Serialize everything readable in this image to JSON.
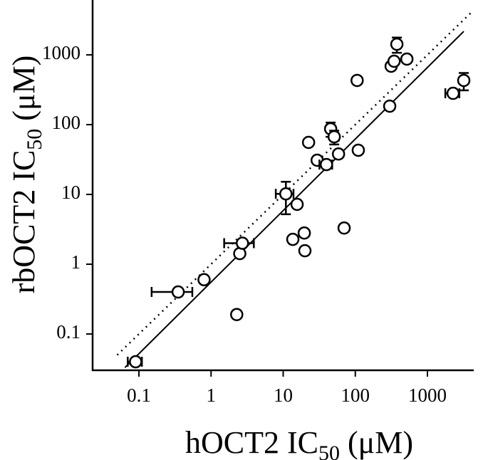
{
  "chart_data": {
    "type": "scatter",
    "xlabel": [
      "hOCT2 IC",
      "50",
      " (μM)"
    ],
    "ylabel": [
      "rbOCT2 IC",
      "50",
      " (μM)"
    ],
    "x": [
      0.09,
      0.35,
      0.8,
      2.27,
      2.5,
      2.72,
      10.9,
      15.6,
      13.6,
      19.6,
      20,
      22.5,
      29.6,
      39.8,
      45.5,
      51,
      58.5,
      70,
      110,
      106,
      300,
      314,
      345,
      377,
      519,
      2270,
      3190
    ],
    "y": [
      0.04,
      0.4,
      0.6,
      0.19,
      1.42,
      2.0,
      10.2,
      7.2,
      2.27,
      2.8,
      1.56,
      55.6,
      30.9,
      26.8,
      87,
      67,
      38,
      3.3,
      43,
      430,
      184,
      687,
      810,
      1420,
      870,
      281,
      430
    ],
    "xerr": [
      0.02,
      0.2,
      null,
      0.25,
      null,
      1.2,
      3,
      null,
      null,
      null,
      null,
      null,
      null,
      8,
      null,
      null,
      null,
      null,
      null,
      null,
      null,
      null,
      null,
      null,
      40,
      500,
      null
    ],
    "yerr": [
      null,
      null,
      null,
      null,
      null,
      null,
      5,
      null,
      null,
      null,
      null,
      null,
      null,
      null,
      20,
      15,
      null,
      null,
      null,
      null,
      null,
      null,
      null,
      350,
      null,
      null,
      120
    ],
    "color": "#000000",
    "lines": [
      {
        "style": "solid",
        "x": [
          0.064,
          3190
        ],
        "y": [
          0.033,
          2170
        ]
      },
      {
        "style": "dotted",
        "x": [
          0.05,
          4000
        ],
        "y": [
          0.05,
          4000
        ]
      }
    ],
    "xscale": "log",
    "yscale": "log",
    "xlim": [
      0.0228,
      4385
    ],
    "ylim": [
      0.0302,
      6110
    ],
    "xticks": [
      0.1,
      1,
      10,
      100,
      1000
    ],
    "yticks": [
      0.1,
      1,
      10,
      100,
      1000
    ]
  }
}
